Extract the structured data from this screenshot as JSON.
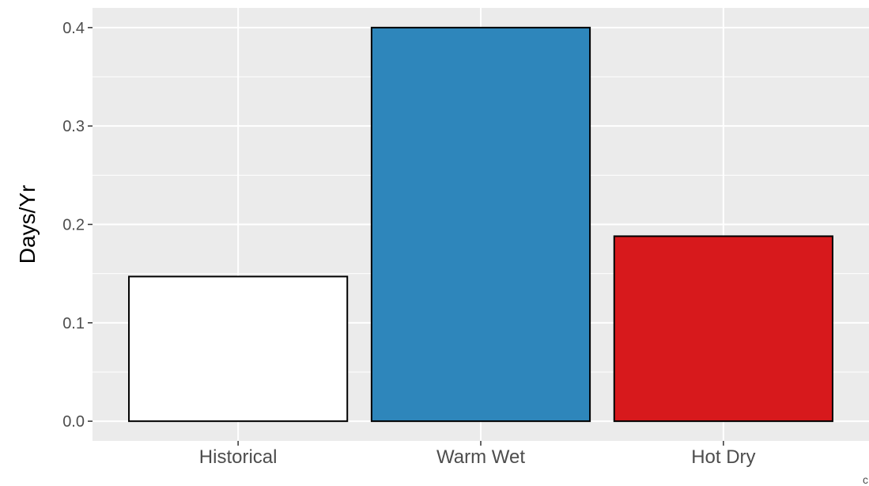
{
  "chart_data": {
    "type": "bar",
    "categories": [
      "Historical",
      "Warm Wet",
      "Hot Dry"
    ],
    "values": [
      0.147,
      0.4,
      0.188
    ],
    "bar_colors": [
      "#ffffff",
      "#2e86bb",
      "#d7191c"
    ],
    "bar_outline_color": "#000000",
    "panel_background": "#ebebeb",
    "grid_color": "#ffffff",
    "title": "",
    "xlabel": "",
    "ylabel": "Days/Yr",
    "ylim": [
      -0.02,
      0.42
    ],
    "yticks": [
      0.0,
      0.1,
      0.2,
      0.3,
      0.4
    ],
    "ytick_labels": [
      "0.0",
      "0.1",
      "0.2",
      "0.3",
      "0.4"
    ],
    "grid": true,
    "legend": "none"
  },
  "corner_text": "c"
}
